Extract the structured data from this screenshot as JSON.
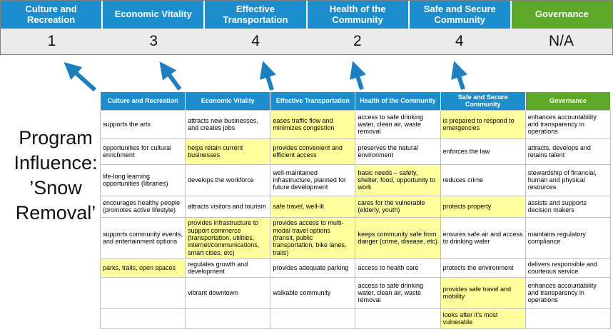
{
  "colors": {
    "blue": "#1d8ecd",
    "green": "#5ea829",
    "yellow": "#ffff9e",
    "arrow": "#1e7fc0",
    "scorebg": "#ebebeb",
    "border": "#c0c0c0"
  },
  "program": {
    "title": "Program Influence: ’Snow Removal’"
  },
  "pillars": [
    {
      "label": "Culture and Recreation",
      "score": "1",
      "theme": "blue"
    },
    {
      "label": "Economic Vitality",
      "score": "3",
      "theme": "blue"
    },
    {
      "label": "Effective Transportation",
      "score": "4",
      "theme": "blue"
    },
    {
      "label": "Health of the Community",
      "score": "2",
      "theme": "blue"
    },
    {
      "label": "Safe and Secure Community",
      "score": "4",
      "theme": "blue"
    },
    {
      "label": "Governance",
      "score": "N/A",
      "theme": "green"
    }
  ],
  "matrix": {
    "headers": [
      {
        "label": "Culture and Recreation",
        "theme": "blue"
      },
      {
        "label": "Economic Vitality",
        "theme": "blue"
      },
      {
        "label": "Effective Transportation",
        "theme": "blue"
      },
      {
        "label": "Health of the Community",
        "theme": "blue"
      },
      {
        "label": "Safe and Secure Community",
        "theme": "blue"
      },
      {
        "label": "Governance",
        "theme": "green"
      }
    ],
    "rows": [
      [
        {
          "t": "supports the arts",
          "h": false
        },
        {
          "t": "attracts new businesses, and creates jobs",
          "h": false
        },
        {
          "t": "eases traffic flow and minimizes congestion",
          "h": true
        },
        {
          "t": "access to safe drinking water, clean air, waste removal",
          "h": false
        },
        {
          "t": "is prepared to respond to emergencies",
          "h": true
        },
        {
          "t": "enhances accountability and transparency in operations",
          "h": false
        }
      ],
      [
        {
          "t": "opportunities for cultural enrichment",
          "h": false
        },
        {
          "t": "helps retain current businesses",
          "h": true
        },
        {
          "t": "provides convenient and efficient access",
          "h": true
        },
        {
          "t": "preserves the natural environment",
          "h": false
        },
        {
          "t": "enforces the law",
          "h": false
        },
        {
          "t": "attracts, develops and retains talent",
          "h": false
        }
      ],
      [
        {
          "t": "life-long learning opportunities (libraries)",
          "h": false
        },
        {
          "t": "develops the workforce",
          "h": false
        },
        {
          "t": "well-maintained infrastructure, planned for future development",
          "h": false
        },
        {
          "t": "basic needs – safety, shelter, food, opportunity to work",
          "h": true
        },
        {
          "t": "reduces crime",
          "h": false
        },
        {
          "t": "stewardship of financial, human and physical resources",
          "h": false
        }
      ],
      [
        {
          "t": "encourages healthy people (promotes active lifestyle)",
          "h": false
        },
        {
          "t": "attracts visitors and tourism",
          "h": false
        },
        {
          "t": "safe travel, well-lit",
          "h": true
        },
        {
          "t": "cares for the vulnerable (elderly, youth)",
          "h": true
        },
        {
          "t": "protects property",
          "h": true
        },
        {
          "t": "assists and supports decision makers",
          "h": false
        }
      ],
      [
        {
          "t": "supports community events, and entertainment options",
          "h": false
        },
        {
          "t": "provides infrastructure to support commerce (transportation, utilities, internet/communications, smart cities, etc)",
          "h": true
        },
        {
          "t": "provides access to multi-modal travel options (transit, public transportation, bike lanes, trails)",
          "h": true
        },
        {
          "t": "keeps community safe from danger (crime, disease, etc)",
          "h": true
        },
        {
          "t": "ensures safe air and access to drinking water",
          "h": false
        },
        {
          "t": "maintains regulatory compliance",
          "h": false
        }
      ],
      [
        {
          "t": "parks, trails, open spaces",
          "h": true
        },
        {
          "t": "regulates growth and development",
          "h": false
        },
        {
          "t": "provides adequate parking",
          "h": false
        },
        {
          "t": "access to health care",
          "h": false
        },
        {
          "t": "protects the environment",
          "h": false
        },
        {
          "t": "delivers responsible and courteous service",
          "h": false
        }
      ],
      [
        {
          "t": "",
          "h": false
        },
        {
          "t": "vibrant downtown",
          "h": false
        },
        {
          "t": "walkable community",
          "h": false
        },
        {
          "t": "access to safe drinking water, clean air, waste removal",
          "h": false
        },
        {
          "t": "provides safe travel and mobility",
          "h": true
        },
        {
          "t": "enhances accountability and transparency in operations",
          "h": false
        }
      ],
      [
        {
          "t": "",
          "h": false
        },
        {
          "t": "",
          "h": false
        },
        {
          "t": "",
          "h": false
        },
        {
          "t": "",
          "h": false
        },
        {
          "t": "looks after it's most vulnerable",
          "h": true
        },
        {
          "t": "",
          "h": false
        }
      ]
    ]
  }
}
